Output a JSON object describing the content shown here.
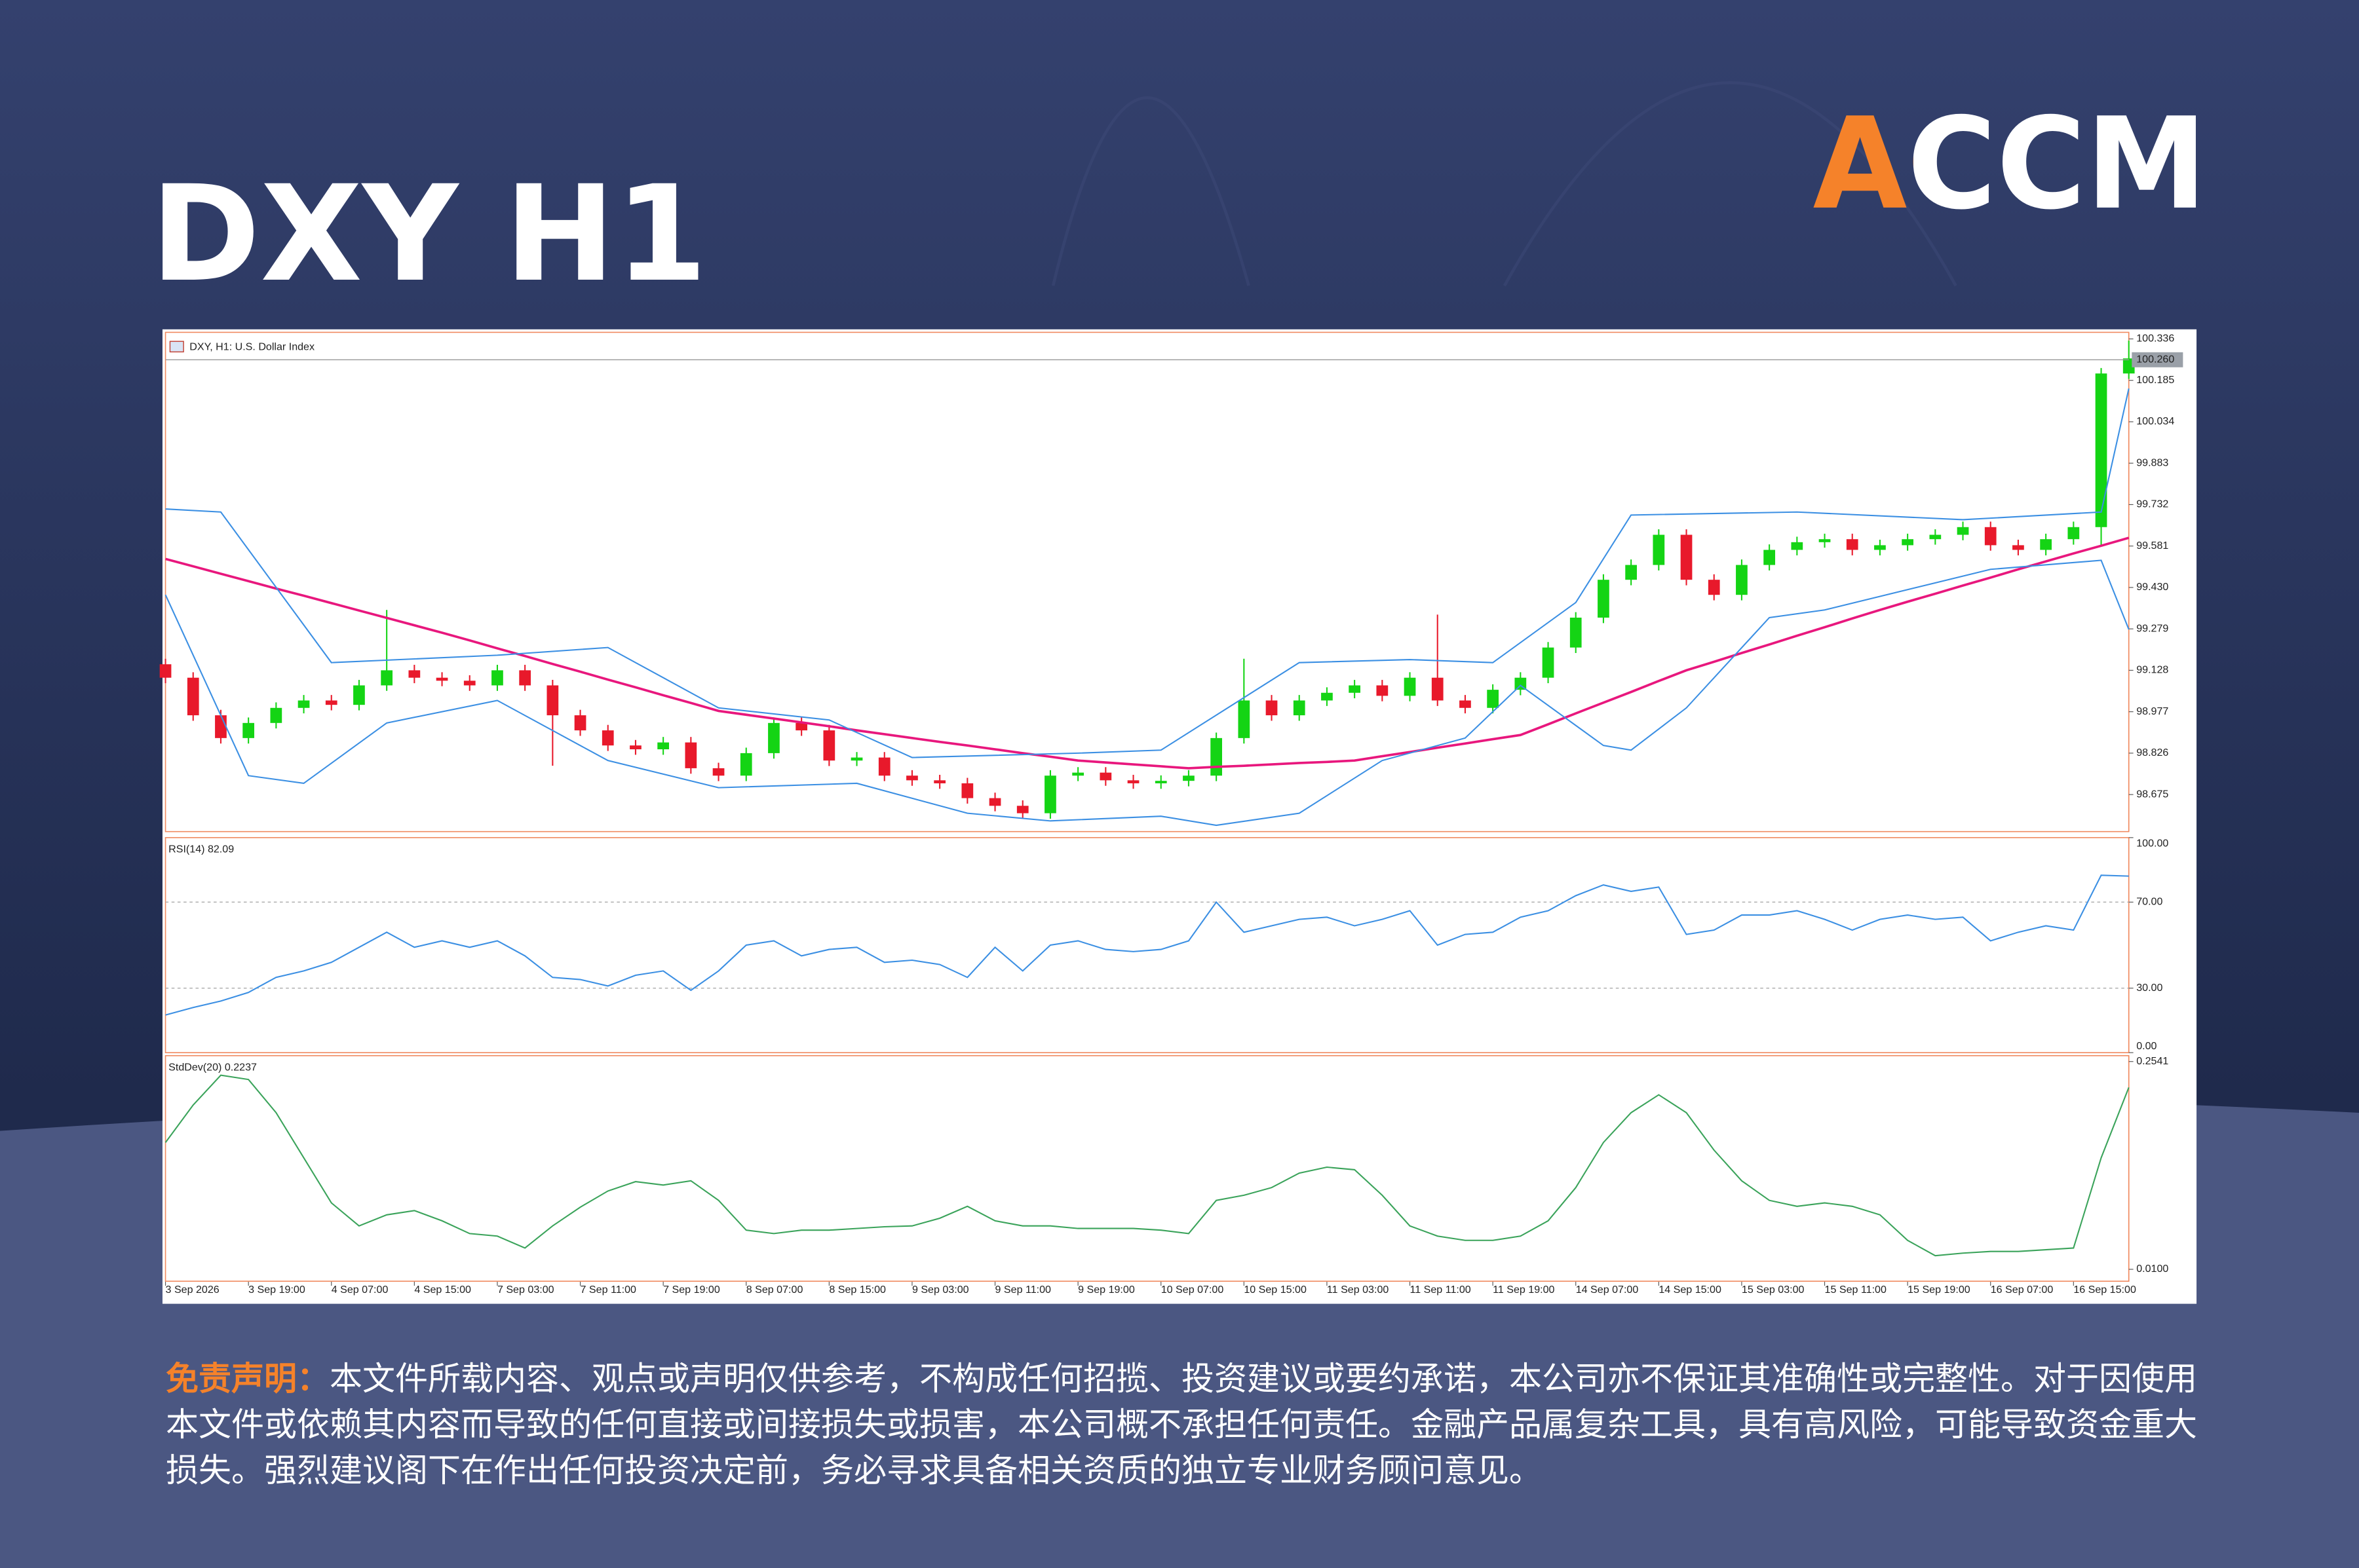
{
  "header": {
    "title": "DXY H1",
    "logo": "ACCM"
  },
  "disclaimer": {
    "label": "免责声明：",
    "text": "本文件所载内容、观点或声明仅供参考，不构成任何招揽、投资建议或要约承诺，本公司亦不保证其准确性或完整性。对于因使用本文件或依赖其内容而导致的任何直接或间接损失或损害，本公司概不承担任何责任。金融产品属复杂工具，具有高风险，可能导致资金重大损失。强烈建议阁下在作出任何投资决定前，务必寻求具备相关资质的独立专业财务顾问意见。"
  },
  "chart_data": [
    {
      "type": "candlestick",
      "title": "DXY, H1:  U.S. Dollar Index",
      "up_color": "#14d414",
      "down_color": "#e8192b",
      "xlim": [
        0,
        71
      ],
      "xticks": [
        {
          "value": 0,
          "label": "3 Sep 2026"
        },
        {
          "value": 3,
          "label": "3 Sep 19:00"
        },
        {
          "value": 6,
          "label": "4 Sep 07:00"
        },
        {
          "value": 9,
          "label": "4 Sep 15:00"
        },
        {
          "value": 12,
          "label": "7 Sep 03:00"
        },
        {
          "value": 15,
          "label": "7 Sep 11:00"
        },
        {
          "value": 18,
          "label": "7 Sep 19:00"
        },
        {
          "value": 21,
          "label": "8 Sep 07:00"
        },
        {
          "value": 24,
          "label": "8 Sep 15:00"
        },
        {
          "value": 27,
          "label": "9 Sep 03:00"
        },
        {
          "value": 30,
          "label": "9 Sep 11:00"
        },
        {
          "value": 33,
          "label": "9 Sep 19:00"
        },
        {
          "value": 36,
          "label": "10 Sep 07:00"
        },
        {
          "value": 39,
          "label": "10 Sep 15:00"
        },
        {
          "value": 42,
          "label": "11 Sep 03:00"
        },
        {
          "value": 45,
          "label": "11 Sep 11:00"
        },
        {
          "value": 48,
          "label": "11 Sep 19:00"
        },
        {
          "value": 51,
          "label": "14 Sep 07:00"
        },
        {
          "value": 54,
          "label": "14 Sep 15:00"
        },
        {
          "value": 57,
          "label": "15 Sep 03:00"
        },
        {
          "value": 60,
          "label": "15 Sep 11:00"
        },
        {
          "value": 63,
          "label": "15 Sep 19:00"
        },
        {
          "value": 66,
          "label": "16 Sep 07:00"
        },
        {
          "value": 69,
          "label": "16 Sep 15:00"
        }
      ],
      "ylim": [
        98.54,
        100.36
      ],
      "yticks": [
        100.336,
        100.185,
        100.034,
        99.883,
        99.732,
        99.581,
        {
          "value": 99.43,
          "label": "99.430"
        },
        99.279,
        99.128,
        98.977,
        98.826,
        98.675
      ],
      "last_price": {
        "value": 100.26,
        "label": "100.260"
      },
      "open": [
        99.15,
        99.101,
        98.964,
        98.881,
        98.936,
        98.991,
        99.018,
        99.002,
        99.073,
        99.128,
        99.101,
        99.09,
        99.073,
        99.128,
        99.073,
        98.964,
        98.909,
        98.854,
        98.84,
        98.865,
        98.771,
        98.744,
        98.826,
        98.936,
        98.909,
        98.799,
        98.81,
        98.744,
        98.727,
        98.716,
        98.662,
        98.634,
        98.607,
        98.744,
        98.755,
        98.727,
        98.716,
        98.725,
        98.744,
        98.881,
        99.018,
        98.964,
        99.018,
        99.046,
        99.073,
        99.035,
        99.101,
        99.018,
        98.991,
        99.057,
        99.101,
        99.211,
        99.32,
        99.458,
        99.512,
        99.622,
        99.458,
        99.403,
        99.512,
        99.567,
        99.595,
        99.606,
        99.567,
        99.584,
        99.606,
        99.622,
        99.65,
        99.584,
        99.567,
        99.606,
        99.65,
        100.21
      ],
      "high": [
        99.17,
        99.121,
        98.984,
        98.956,
        99.011,
        99.038,
        99.038,
        99.093,
        99.348,
        99.148,
        99.121,
        99.11,
        99.148,
        99.148,
        99.093,
        98.984,
        98.929,
        98.874,
        98.885,
        98.885,
        98.791,
        98.846,
        98.956,
        98.956,
        98.929,
        98.83,
        98.83,
        98.764,
        98.747,
        98.736,
        98.682,
        98.654,
        98.764,
        98.775,
        98.775,
        98.747,
        98.745,
        98.764,
        98.901,
        99.17,
        99.038,
        99.038,
        99.066,
        99.093,
        99.093,
        99.121,
        99.331,
        99.038,
        99.077,
        99.121,
        99.231,
        99.34,
        99.478,
        99.532,
        99.642,
        99.642,
        99.478,
        99.532,
        99.587,
        99.615,
        99.626,
        99.626,
        99.604,
        99.626,
        99.642,
        99.67,
        99.67,
        99.604,
        99.626,
        99.67,
        100.23,
        100.33
      ],
      "low": [
        99.081,
        98.944,
        98.861,
        98.861,
        98.916,
        98.971,
        98.982,
        98.982,
        99.053,
        99.081,
        99.07,
        99.053,
        99.053,
        99.053,
        98.78,
        98.889,
        98.834,
        98.82,
        98.82,
        98.751,
        98.724,
        98.724,
        98.806,
        98.889,
        98.779,
        98.779,
        98.724,
        98.707,
        98.696,
        98.642,
        98.614,
        98.587,
        98.587,
        98.724,
        98.707,
        98.696,
        98.696,
        98.705,
        98.724,
        98.861,
        98.944,
        98.944,
        98.998,
        99.026,
        99.015,
        99.015,
        98.998,
        98.971,
        98.971,
        99.037,
        99.081,
        99.191,
        99.3,
        99.438,
        99.492,
        99.438,
        99.383,
        99.383,
        99.492,
        99.547,
        99.575,
        99.547,
        99.547,
        99.564,
        99.586,
        99.602,
        99.564,
        99.547,
        99.547,
        99.586,
        99.58,
        100.19
      ],
      "close": [
        99.101,
        98.964,
        98.881,
        98.936,
        98.991,
        99.018,
        99.002,
        99.073,
        99.128,
        99.101,
        99.09,
        99.073,
        99.128,
        99.073,
        98.964,
        98.909,
        98.854,
        98.84,
        98.865,
        98.771,
        98.744,
        98.826,
        98.936,
        98.909,
        98.799,
        98.81,
        98.744,
        98.727,
        98.716,
        98.662,
        98.634,
        98.607,
        98.744,
        98.755,
        98.727,
        98.716,
        98.725,
        98.744,
        98.881,
        99.018,
        98.964,
        99.018,
        99.046,
        99.073,
        99.035,
        99.101,
        99.018,
        98.991,
        99.057,
        99.101,
        99.211,
        99.32,
        99.458,
        99.512,
        99.622,
        99.458,
        99.403,
        99.512,
        99.567,
        99.595,
        99.606,
        99.567,
        99.584,
        99.606,
        99.622,
        99.65,
        99.584,
        99.567,
        99.606,
        99.65,
        100.21,
        100.265
      ],
      "overlays": [
        {
          "type": "line",
          "color": "#e8177d",
          "values": [
            99.534,
            99.507,
            99.48,
            99.453,
            99.426,
            99.4,
            99.373,
            99.346,
            99.319,
            99.292,
            99.265,
            99.237,
            99.208,
            99.18,
            99.151,
            99.123,
            99.094,
            99.066,
            99.037,
            99.009,
            98.98,
            98.966,
            98.952,
            98.938,
            98.924,
            98.909,
            98.895,
            98.881,
            98.867,
            98.854,
            98.84,
            98.826,
            98.813,
            98.799,
            98.792,
            98.785,
            98.778,
            98.771,
            98.776,
            98.78,
            98.785,
            98.79,
            98.794,
            98.799,
            98.815,
            98.83,
            98.846,
            98.861,
            98.877,
            98.892,
            98.931,
            98.971,
            99.01,
            99.049,
            99.089,
            99.128,
            99.159,
            99.191,
            99.222,
            99.254,
            99.285,
            99.317,
            99.348,
            99.378,
            99.407,
            99.437,
            99.466,
            99.496,
            99.525,
            99.554,
            99.582,
            99.611
          ]
        },
        {
          "type": "line",
          "color": "#3b8fe3",
          "x": [
            0,
            2,
            6,
            12,
            16,
            20,
            24,
            27,
            33,
            36,
            41,
            45,
            48,
            51,
            53,
            59,
            65,
            70,
            71
          ],
          "values": [
            99.716,
            99.705,
            99.156,
            99.183,
            99.211,
            98.991,
            98.947,
            98.81,
            98.826,
            98.837,
            99.156,
            99.167,
            99.156,
            99.375,
            99.694,
            99.705,
            99.677,
            99.705,
            100.155
          ]
        },
        {
          "type": "line",
          "color": "#3b8fe3",
          "x": [
            0,
            3,
            5,
            8,
            12,
            16,
            20,
            25,
            29,
            32,
            36,
            38,
            41,
            44,
            47,
            49,
            52,
            53,
            55,
            58,
            60,
            66,
            70,
            71
          ],
          "values": [
            99.403,
            98.744,
            98.716,
            98.936,
            99.018,
            98.799,
            98.7,
            98.716,
            98.607,
            98.579,
            98.596,
            98.563,
            98.607,
            98.799,
            98.881,
            99.073,
            98.854,
            98.837,
            98.991,
            99.32,
            99.348,
            99.496,
            99.529,
            99.277
          ]
        }
      ]
    },
    {
      "type": "line",
      "title": "RSI(14) 82.09",
      "color": "#3b8fe3",
      "grid": true,
      "ylim": [
        0,
        100
      ],
      "yticks": [
        {
          "value": 100,
          "label": "100.00"
        },
        {
          "value": 70,
          "label": "70.00"
        },
        {
          "value": 30,
          "label": "30.00"
        },
        {
          "value": 0,
          "label": "0.00"
        }
      ],
      "values": [
        17.5,
        21,
        24,
        28,
        35,
        38,
        42,
        49,
        56,
        49,
        52,
        49,
        52,
        45,
        35,
        34,
        31,
        36,
        38,
        29,
        38,
        50,
        52,
        45,
        48,
        49,
        42,
        43,
        41,
        35,
        49,
        38,
        50,
        52,
        48,
        47,
        48,
        52,
        70,
        56,
        59,
        62,
        63,
        59,
        62,
        66,
        50,
        55,
        56,
        63,
        66,
        73,
        78,
        75,
        77,
        55,
        57,
        64,
        64,
        66,
        62,
        57,
        62,
        64,
        62,
        63,
        52,
        56,
        59,
        57,
        82.5,
        82.09
      ]
    },
    {
      "type": "line",
      "title": "StdDev(20) 0.2237",
      "color": "#3aa35a",
      "grid": false,
      "ylim": [
        -0.004,
        0.261
      ],
      "yticks": [
        0.2541,
        {
          "value": 0.01,
          "label": "0.0100"
        }
      ],
      "values": [
        0.159,
        0.203,
        0.238,
        0.233,
        0.194,
        0.141,
        0.088,
        0.061,
        0.074,
        0.079,
        0.067,
        0.052,
        0.049,
        0.035,
        0.061,
        0.083,
        0.102,
        0.113,
        0.109,
        0.114,
        0.091,
        0.056,
        0.052,
        0.056,
        0.056,
        0.058,
        0.06,
        0.061,
        0.07,
        0.084,
        0.067,
        0.061,
        0.061,
        0.058,
        0.058,
        0.058,
        0.056,
        0.052,
        0.091,
        0.097,
        0.106,
        0.123,
        0.13,
        0.127,
        0.097,
        0.061,
        0.049,
        0.044,
        0.044,
        0.049,
        0.067,
        0.106,
        0.159,
        0.194,
        0.215,
        0.194,
        0.15,
        0.114,
        0.091,
        0.084,
        0.088,
        0.084,
        0.074,
        0.044,
        0.026,
        0.029,
        0.031,
        0.031,
        0.033,
        0.035,
        0.141,
        0.2237
      ]
    }
  ]
}
